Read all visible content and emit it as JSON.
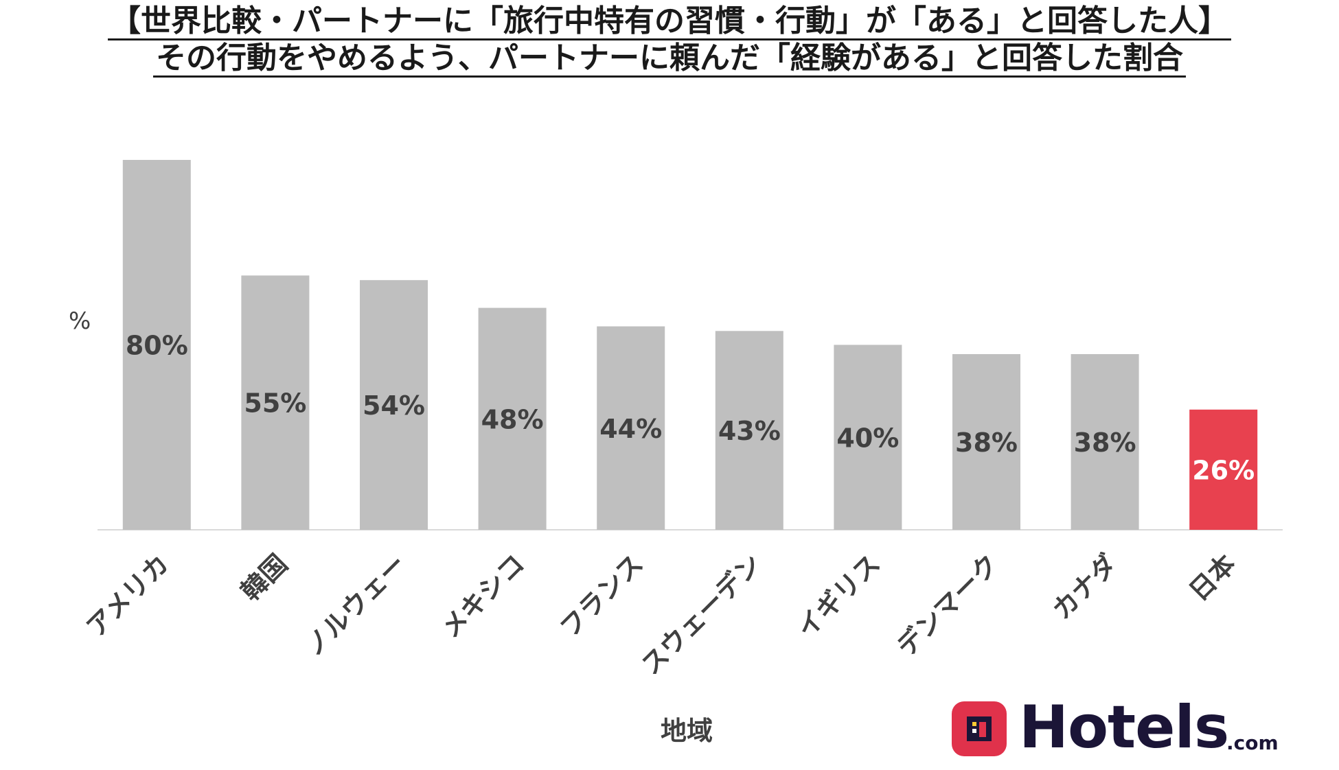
{
  "title": {
    "line1": "【世界比較・パートナーに「旅行中特有の習慣・行動」が「ある」と回答した人】",
    "line2": "その行動をやめるよう、パートナーに頼んだ「経験がある」と回答した割合"
  },
  "logo": {
    "text": "Hotels",
    "suffix": ".com",
    "icon": "hotels-logo-icon",
    "color": "#e0324b"
  },
  "chart_data": {
    "type": "bar",
    "categories": [
      "アメリカ",
      "韓国",
      "ノルウェー",
      "メキシコ",
      "フランス",
      "スウェーデン",
      "イギリス",
      "デンマーク",
      "カナダ",
      "日本"
    ],
    "values": [
      80,
      55,
      54,
      48,
      44,
      43,
      40,
      38,
      38,
      26
    ],
    "data_labels": [
      "80%",
      "55%",
      "54%",
      "48%",
      "44%",
      "43%",
      "40%",
      "38%",
      "38%",
      "26%"
    ],
    "ylabel": "%",
    "xlabel": "地域",
    "ylim": [
      0,
      80
    ],
    "grid": false,
    "legend": "none",
    "colors": {
      "default": "#bfbfbf",
      "highlight": "#e8414f",
      "label": "#404040",
      "highlight_label": "#ffffff"
    },
    "highlight_index": 9
  }
}
